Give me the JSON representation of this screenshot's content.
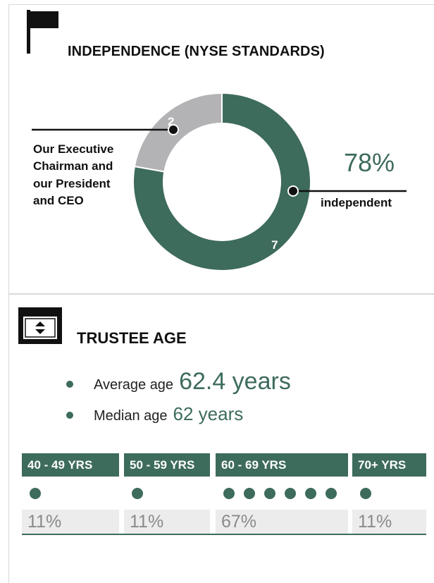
{
  "independence": {
    "title": "INDEPENDENCE (NYSE STANDARDS)",
    "left_note": "Our Executive Chairman and our President and CEO",
    "right_pct": "78%",
    "right_note": "independent"
  },
  "trustee_age": {
    "title": "TRUSTEE AGE",
    "average_label": "Average age",
    "average_value": "62.4 years",
    "median_label": "Median age",
    "median_value": "62 years"
  },
  "colors": {
    "accent": "#3d6b5c",
    "grey": "#b3b3b6",
    "pct_bg": "#ececec"
  },
  "chart_data": [
    {
      "type": "pie",
      "categories": [
        "Not independent",
        "Independent"
      ],
      "values": [
        2,
        7
      ],
      "labels": [
        "2",
        "7"
      ],
      "colors": [
        "#b3b3b6",
        "#3d6b5c"
      ]
    },
    {
      "type": "bar",
      "categories": [
        "40 - 49 YRS",
        "50 - 59 YRS",
        "60 - 69 YRS",
        "70+ YRS"
      ],
      "counts": [
        1,
        1,
        6,
        1
      ],
      "percent_labels": [
        "11%",
        "11%",
        "67%",
        "11%"
      ]
    }
  ]
}
